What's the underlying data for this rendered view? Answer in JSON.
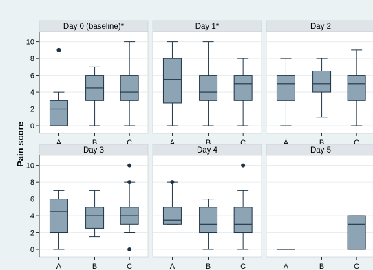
{
  "chart_data": {
    "type": "box",
    "ylabel": "Pain score",
    "categories": [
      "A",
      "B",
      "C"
    ],
    "yticks": [
      0,
      2,
      4,
      6,
      8,
      10
    ],
    "ylim": [
      -0.9,
      11.2
    ],
    "colors": {
      "box_fill": "#8ca4b4",
      "box_stroke": "#1f3447",
      "outlier": "#1f3447",
      "panel_header": "#dfe4e9",
      "plot_bg": "#ffffff",
      "page_bg": "#eaf2f3"
    },
    "panels": [
      {
        "title": "Day 0 (baseline)*",
        "boxes": [
          {
            "cat": "A",
            "whislo": 0,
            "q1": 0,
            "med": 2,
            "q3": 3,
            "whishi": 4,
            "fliers": [
              9
            ]
          },
          {
            "cat": "B",
            "whislo": 0,
            "q1": 3,
            "med": 4.5,
            "q3": 6,
            "whishi": 7,
            "fliers": []
          },
          {
            "cat": "C",
            "whislo": 0,
            "q1": 3,
            "med": 4,
            "q3": 6,
            "whishi": 10,
            "fliers": []
          }
        ]
      },
      {
        "title": "Day 1*",
        "boxes": [
          {
            "cat": "A",
            "whislo": 0,
            "q1": 2.7,
            "med": 5.5,
            "q3": 8,
            "whishi": 10,
            "fliers": []
          },
          {
            "cat": "B",
            "whislo": 0,
            "q1": 3,
            "med": 4,
            "q3": 6,
            "whishi": 10,
            "fliers": []
          },
          {
            "cat": "C",
            "whislo": 0,
            "q1": 3,
            "med": 5,
            "q3": 6,
            "whishi": 8,
            "fliers": []
          }
        ]
      },
      {
        "title": "Day 2",
        "boxes": [
          {
            "cat": "A",
            "whislo": 0,
            "q1": 3,
            "med": 5,
            "q3": 6,
            "whishi": 8,
            "fliers": []
          },
          {
            "cat": "B",
            "whislo": 1,
            "q1": 4,
            "med": 5,
            "q3": 6.5,
            "whishi": 8,
            "fliers": []
          },
          {
            "cat": "C",
            "whislo": 0,
            "q1": 3,
            "med": 5,
            "q3": 6,
            "whishi": 9,
            "fliers": []
          }
        ]
      },
      {
        "title": "Day 3",
        "boxes": [
          {
            "cat": "A",
            "whislo": 0,
            "q1": 2,
            "med": 4.5,
            "q3": 6,
            "whishi": 7,
            "fliers": []
          },
          {
            "cat": "B",
            "whislo": 1.5,
            "q1": 2.5,
            "med": 4,
            "q3": 5,
            "whishi": 7,
            "fliers": []
          },
          {
            "cat": "C",
            "whislo": 2,
            "q1": 3,
            "med": 4,
            "q3": 5,
            "whishi": 8,
            "fliers": [
              0,
              8,
              10
            ]
          }
        ]
      },
      {
        "title": "Day 4",
        "boxes": [
          {
            "cat": "A",
            "whislo": 3,
            "q1": 3,
            "med": 3.5,
            "q3": 5,
            "whishi": 8,
            "fliers": [
              8
            ]
          },
          {
            "cat": "B",
            "whislo": 0,
            "q1": 2,
            "med": 3,
            "q3": 5,
            "whishi": 6,
            "fliers": []
          },
          {
            "cat": "C",
            "whislo": 0,
            "q1": 2,
            "med": 3,
            "q3": 5,
            "whishi": 7,
            "fliers": [
              10
            ]
          }
        ]
      },
      {
        "title": "Day 5",
        "boxes": [
          {
            "cat": "A",
            "whislo": 0,
            "q1": 0,
            "med": 0,
            "q3": 0,
            "whishi": 0,
            "fliers": []
          },
          {
            "cat": "C",
            "whislo": 0,
            "q1": 0,
            "med": 3,
            "q3": 4,
            "whishi": 4,
            "fliers": []
          }
        ]
      }
    ]
  }
}
